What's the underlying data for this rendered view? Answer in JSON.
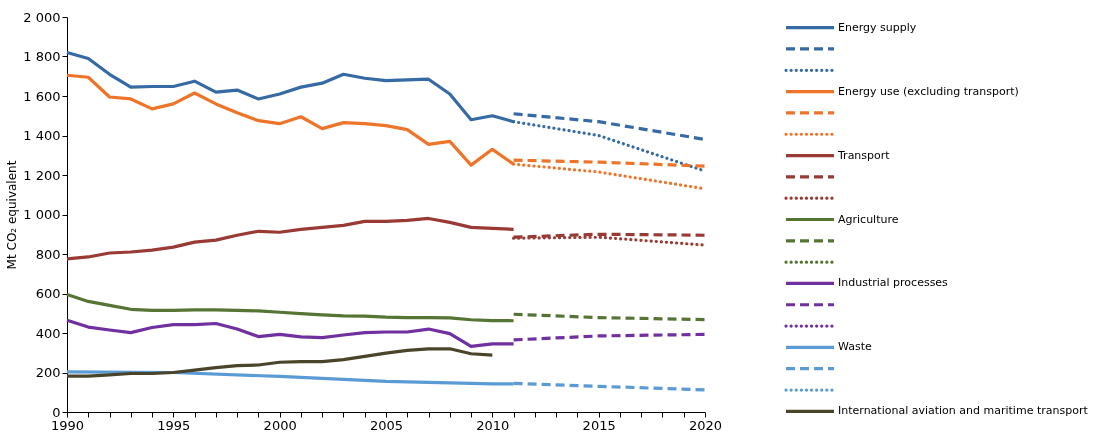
{
  "chart_data": {
    "type": "line",
    "ylabel": "Mt CO₂ equivalent",
    "xlim": [
      1990,
      2020
    ],
    "ylim": [
      0,
      2000
    ],
    "xticks": [
      1990,
      {
        "value": 1991,
        "label": null
      },
      {
        "value": 1992,
        "label": null
      },
      {
        "value": 1993,
        "label": null
      },
      {
        "value": 1994,
        "label": null
      },
      1995,
      {
        "value": 1996,
        "label": null
      },
      {
        "value": 1997,
        "label": null
      },
      {
        "value": 1998,
        "label": null
      },
      {
        "value": 1999,
        "label": null
      },
      2000,
      {
        "value": 2001,
        "label": null
      },
      {
        "value": 2002,
        "label": null
      },
      {
        "value": 2003,
        "label": null
      },
      {
        "value": 2004,
        "label": null
      },
      2005,
      {
        "value": 2006,
        "label": null
      },
      {
        "value": 2007,
        "label": null
      },
      {
        "value": 2008,
        "label": null
      },
      {
        "value": 2009,
        "label": null
      },
      2010,
      {
        "value": 2011,
        "label": null
      },
      {
        "value": 2012,
        "label": null
      },
      {
        "value": 2013,
        "label": null
      },
      {
        "value": 2014,
        "label": null
      },
      2015,
      {
        "value": 2016,
        "label": null
      },
      {
        "value": 2017,
        "label": null
      },
      {
        "value": 2018,
        "label": null
      },
      {
        "value": 2019,
        "label": null
      },
      2020
    ],
    "yticks": [
      0,
      200,
      400,
      600,
      800,
      {
        "value": 1000,
        "label": "1 000"
      },
      {
        "value": 1200,
        "label": "1 200"
      },
      {
        "value": 1400,
        "label": "1 400"
      },
      {
        "value": 1600,
        "label": "1 600"
      },
      {
        "value": 1800,
        "label": "1 800"
      },
      {
        "value": 2000,
        "label": "2 000"
      }
    ],
    "grid": false,
    "legend": "right",
    "marker": "none",
    "series": [
      {
        "name": "Energy supply",
        "color": "#356aa4",
        "line_style": "solid",
        "x": [
          1990,
          1991,
          1992,
          1993,
          1994,
          1995,
          1996,
          1997,
          1998,
          1999,
          2000,
          2001,
          2002,
          2003,
          2004,
          2005,
          2006,
          2007,
          2008,
          2009,
          2010,
          2011
        ],
        "values": [
          1820,
          1790,
          1710,
          1645,
          1648,
          1648,
          1675,
          1620,
          1630,
          1585,
          1610,
          1645,
          1665,
          1710,
          1690,
          1678,
          1682,
          1685,
          1610,
          1480,
          1500,
          1470
        ]
      },
      {
        "color": "#356aa4",
        "line_style": "dashed",
        "x": [
          2011,
          2015,
          2020
        ],
        "values": [
          1510,
          1470,
          1380
        ]
      },
      {
        "color": "#356aa4",
        "line_style": "dotted",
        "x": [
          2011,
          2015,
          2020
        ],
        "values": [
          1470,
          1400,
          1220
        ]
      },
      {
        "name": "Energy use (excluding transport)",
        "color": "#ed7428",
        "line_style": "solid",
        "x": [
          1990,
          1991,
          1992,
          1993,
          1994,
          1995,
          1996,
          1997,
          1998,
          1999,
          2000,
          2001,
          2002,
          2003,
          2004,
          2005,
          2006,
          2007,
          2008,
          2009,
          2010,
          2011
        ],
        "values": [
          1705,
          1695,
          1595,
          1585,
          1535,
          1560,
          1615,
          1560,
          1515,
          1475,
          1460,
          1495,
          1435,
          1465,
          1460,
          1450,
          1430,
          1355,
          1370,
          1250,
          1330,
          1255
        ]
      },
      {
        "color": "#ed7428",
        "line_style": "dashed",
        "x": [
          2011,
          2015,
          2020
        ],
        "values": [
          1275,
          1265,
          1245
        ]
      },
      {
        "color": "#ed7428",
        "line_style": "dotted",
        "x": [
          2011,
          2015,
          2020
        ],
        "values": [
          1255,
          1215,
          1130
        ]
      },
      {
        "name": "Transport",
        "color": "#993a35",
        "line_style": "solid",
        "x": [
          1990,
          1991,
          1992,
          1993,
          1994,
          1995,
          1996,
          1997,
          1998,
          1999,
          2000,
          2001,
          2002,
          2003,
          2004,
          2005,
          2006,
          2007,
          2008,
          2009,
          2010,
          2011
        ],
        "values": [
          775,
          785,
          805,
          810,
          820,
          835,
          860,
          870,
          895,
          915,
          910,
          925,
          935,
          945,
          965,
          965,
          970,
          980,
          960,
          935,
          930,
          925
        ]
      },
      {
        "color": "#993a35",
        "line_style": "dashed",
        "x": [
          2011,
          2015,
          2020
        ],
        "values": [
          885,
          900,
          895
        ]
      },
      {
        "color": "#993a35",
        "line_style": "dotted",
        "x": [
          2011,
          2015,
          2020
        ],
        "values": [
          880,
          885,
          845
        ]
      },
      {
        "name": "Agriculture",
        "color": "#567535",
        "line_style": "solid",
        "x": [
          1990,
          1991,
          1992,
          1993,
          1994,
          1995,
          1996,
          1997,
          1998,
          1999,
          2000,
          2001,
          2002,
          2003,
          2004,
          2005,
          2006,
          2007,
          2008,
          2009,
          2010,
          2011
        ],
        "values": [
          595,
          560,
          540,
          520,
          515,
          515,
          517,
          517,
          515,
          512,
          505,
          498,
          492,
          487,
          485,
          480,
          478,
          478,
          477,
          467,
          463,
          462
        ]
      },
      {
        "color": "#567535",
        "line_style": "dashed",
        "x": [
          2011,
          2015,
          2020
        ],
        "values": [
          495,
          478,
          468
        ]
      },
      {
        "color": "#567535",
        "line_style": "dotted",
        "values": [
          null,
          null,
          null
        ]
      },
      {
        "name": "Industrial processes",
        "color": "#7030a0",
        "line_style": "solid",
        "x": [
          1990,
          1991,
          1992,
          1993,
          1994,
          1995,
          1996,
          1997,
          1998,
          1999,
          2000,
          2001,
          2002,
          2003,
          2004,
          2005,
          2006,
          2007,
          2008,
          2009,
          2010,
          2011
        ],
        "values": [
          465,
          430,
          415,
          402,
          428,
          442,
          442,
          448,
          420,
          382,
          393,
          380,
          377,
          390,
          402,
          405,
          405,
          420,
          397,
          332,
          345,
          345
        ]
      },
      {
        "color": "#7030a0",
        "line_style": "dashed",
        "x": [
          2011,
          2015,
          2020
        ],
        "values": [
          365,
          385,
          393
        ]
      },
      {
        "color": "#7030a0",
        "line_style": "dotted",
        "values": [
          null,
          null,
          null
        ]
      },
      {
        "name": "Waste",
        "color": "#5b9bd5",
        "line_style": "solid",
        "x": [
          1990,
          1995,
          2000,
          2005,
          2010,
          2011
        ],
        "values": [
          203,
          200,
          180,
          155,
          142,
          142
        ]
      },
      {
        "color": "#5b9bd5",
        "line_style": "dashed",
        "x": [
          2011,
          2015,
          2020
        ],
        "values": [
          145,
          130,
          112
        ]
      },
      {
        "color": "#5b9bd5",
        "line_style": "dotted",
        "values": [
          null,
          null,
          null
        ]
      },
      {
        "name": "International aviation and maritime transport",
        "color": "#4a452a",
        "line_style": "solid",
        "x": [
          1990,
          1991,
          1992,
          1993,
          1994,
          1995,
          1996,
          1997,
          1998,
          1999,
          2000,
          2001,
          2002,
          2003,
          2004,
          2005,
          2006,
          2007,
          2008,
          2009,
          2010
        ],
        "values": [
          182,
          182,
          188,
          195,
          195,
          200,
          212,
          225,
          235,
          238,
          252,
          255,
          255,
          265,
          282,
          298,
          312,
          320,
          320,
          295,
          288
        ]
      }
    ]
  }
}
